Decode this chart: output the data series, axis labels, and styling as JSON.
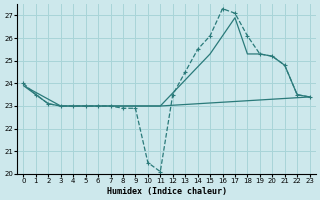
{
  "bg_color": "#cde8ec",
  "grid_color": "#a8d4d8",
  "line_color": "#2a7a7a",
  "xlabel": "Humidex (Indice chaleur)",
  "xlim": [
    -0.5,
    23.5
  ],
  "ylim": [
    20,
    27.5
  ],
  "yticks": [
    20,
    21,
    22,
    23,
    24,
    25,
    26,
    27
  ],
  "xticks": [
    0,
    1,
    2,
    3,
    4,
    5,
    6,
    7,
    8,
    9,
    10,
    11,
    12,
    13,
    14,
    15,
    16,
    17,
    18,
    19,
    20,
    21,
    22,
    23
  ],
  "line_dashed": {
    "x": [
      0,
      1,
      2,
      3,
      4,
      5,
      6,
      7,
      8,
      9,
      10,
      11,
      12,
      13,
      14,
      15,
      16,
      17,
      18,
      19,
      20,
      21,
      22,
      23
    ],
    "y": [
      24,
      23.5,
      23.1,
      23.0,
      23.0,
      23.0,
      23.0,
      23.0,
      22.9,
      22.9,
      20.5,
      20.1,
      23.5,
      24.5,
      25.5,
      26.1,
      27.3,
      27.1,
      26.1,
      25.3,
      25.2,
      24.8,
      23.5,
      23.4
    ]
  },
  "line_solid1": {
    "x": [
      2,
      3,
      11,
      15,
      16,
      17,
      18,
      19,
      20,
      21,
      22,
      23
    ],
    "y": [
      23.1,
      23.0,
      23.0,
      25.3,
      26.1,
      26.9,
      25.3,
      25.3,
      25.2,
      24.8,
      23.5,
      23.4
    ]
  },
  "line_solid2": {
    "x": [
      2,
      0,
      3,
      11,
      23
    ],
    "y": [
      23.1,
      23.9,
      23.0,
      23.0,
      23.4
    ]
  }
}
